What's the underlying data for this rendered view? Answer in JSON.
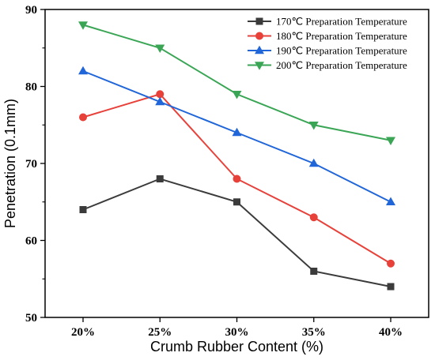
{
  "chart_data": {
    "type": "line",
    "categories": [
      "20%",
      "25%",
      "30%",
      "35%",
      "40%"
    ],
    "xlabel": "Crumb Rubber Content (%)",
    "ylabel": "Penetration (0.1mm)",
    "ylim": [
      50,
      90
    ],
    "yticks": [
      50,
      60,
      70,
      80,
      90
    ],
    "grid": false,
    "legend_position": "top-right",
    "series": [
      {
        "name": "170℃ Preparation Temperature",
        "color": "#3b3b3b",
        "marker": "square",
        "values": [
          64,
          68,
          65,
          56,
          54
        ]
      },
      {
        "name": "180℃ Preparation Temperature",
        "color": "#e8413a",
        "marker": "circle",
        "values": [
          76,
          79,
          68,
          63,
          57
        ]
      },
      {
        "name": "190℃ Preparation Temperature",
        "color": "#2166d9",
        "marker": "triangle-up",
        "values": [
          82,
          78,
          74,
          70,
          65
        ]
      },
      {
        "name": "200℃ Preparation Temperature",
        "color": "#3aa655",
        "marker": "triangle-down",
        "values": [
          88,
          85,
          79,
          75,
          73
        ]
      }
    ]
  }
}
